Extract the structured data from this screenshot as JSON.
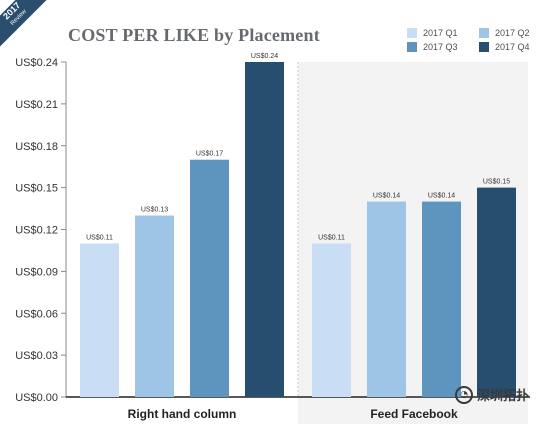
{
  "ribbon": {
    "year": "2017",
    "sub": "Review"
  },
  "chart_data": {
    "type": "bar",
    "title": "COST PER LIKE by Placement",
    "categories": [
      "Right hand column",
      "Feed Facebook"
    ],
    "series": [
      {
        "name": "2017 Q1",
        "color": "#c9ddf4",
        "values": [
          0.11,
          0.11
        ],
        "labels": [
          "US$0.11",
          "US$0.11"
        ]
      },
      {
        "name": "2017 Q2",
        "color": "#9ec4e6",
        "values": [
          0.13,
          0.14
        ],
        "labels": [
          "US$0.13",
          "US$0.14"
        ]
      },
      {
        "name": "2017 Q3",
        "color": "#5e95bf",
        "values": [
          0.17,
          0.14
        ],
        "labels": [
          "US$0.17",
          "US$0.14"
        ]
      },
      {
        "name": "2017 Q4",
        "color": "#284e6f",
        "values": [
          0.24,
          0.15
        ],
        "labels": [
          "US$0.24",
          "US$0.15"
        ]
      }
    ],
    "ylim": [
      0,
      0.24
    ],
    "yticks": [
      0,
      0.03,
      0.06,
      0.09,
      0.12,
      0.15,
      0.18,
      0.21,
      0.24
    ],
    "ytick_labels": [
      "US$0.00",
      "US$0.03",
      "US$0.06",
      "US$0.09",
      "US$0.12",
      "US$0.15",
      "US$0.18",
      "US$0.21",
      "US$0.24"
    ],
    "xlabel": "",
    "ylabel": "",
    "grid": false,
    "legend": "top-right",
    "highlight_background": "#f3f3f3"
  },
  "watermark": {
    "text": "深圳拓扑",
    "icon": "wechat-icon"
  }
}
